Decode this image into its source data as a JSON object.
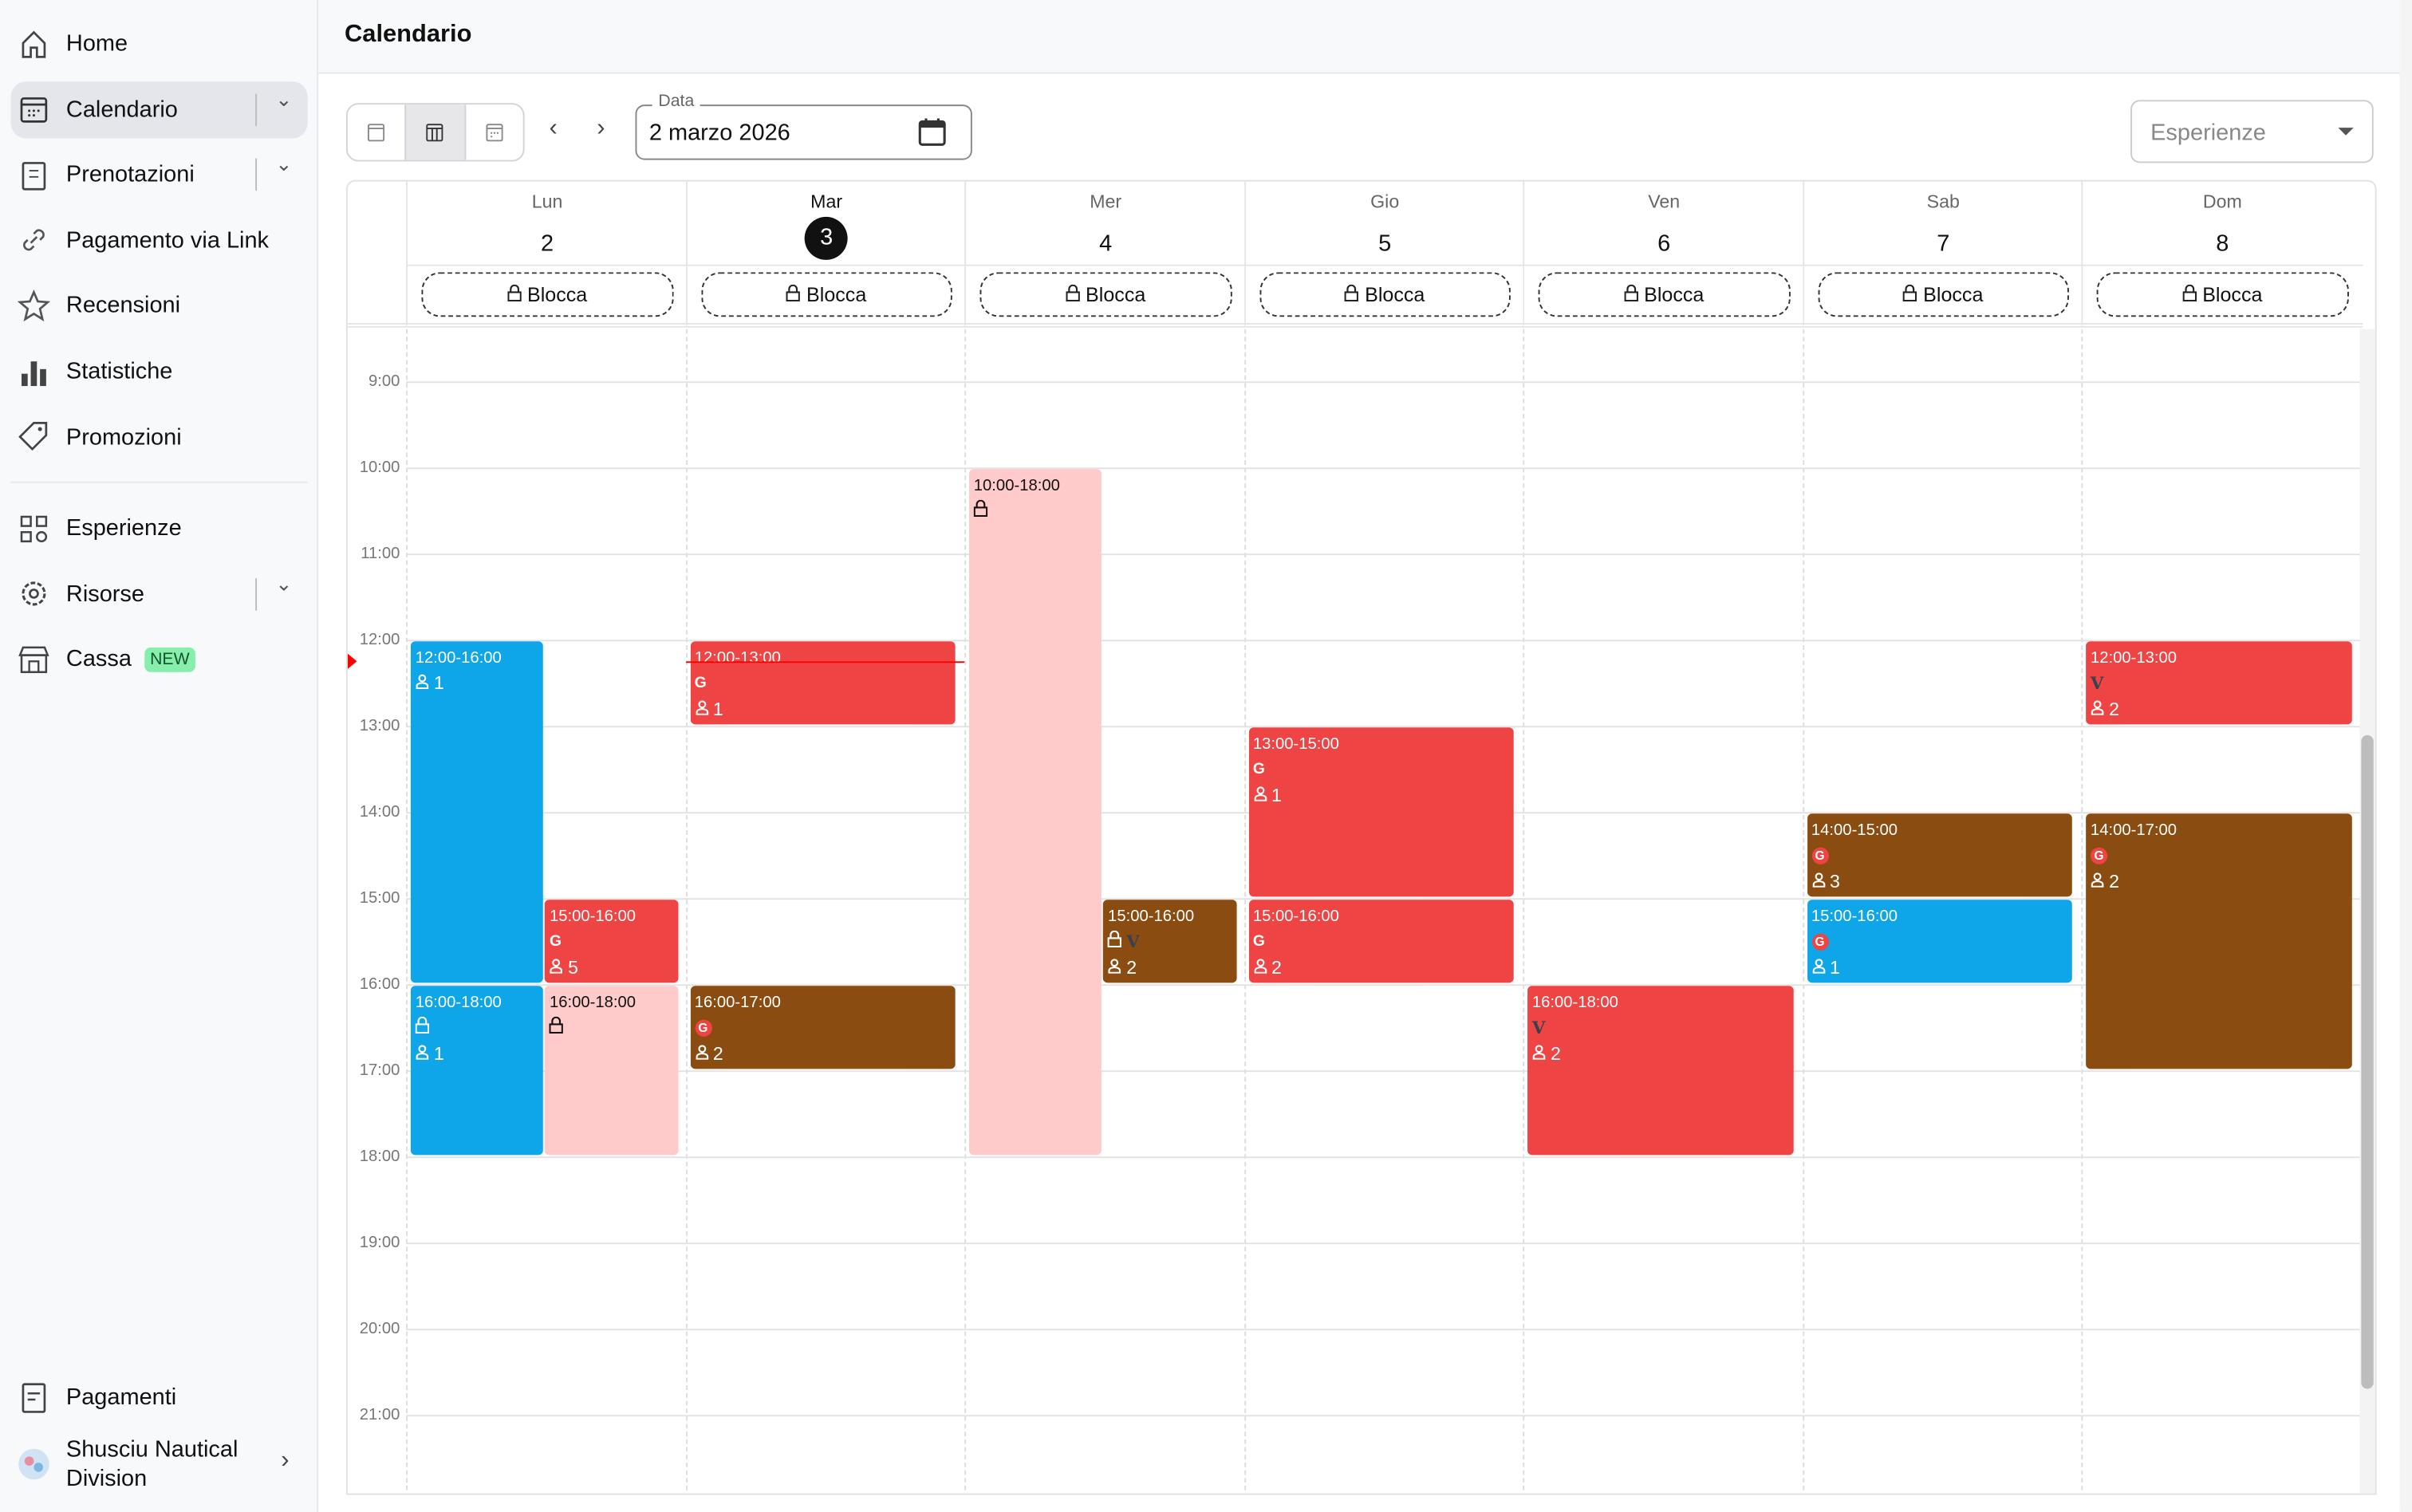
{
  "sidebar": {
    "items": [
      {
        "label": "Home",
        "icon": "home-icon"
      },
      {
        "label": "Calendario",
        "icon": "calendar-icon",
        "selected": true,
        "expandable": true
      },
      {
        "label": "Prenotazioni",
        "icon": "list-icon",
        "expandable": true
      },
      {
        "label": "Pagamento via Link",
        "icon": "link-icon"
      },
      {
        "label": "Recensioni",
        "icon": "star-icon"
      },
      {
        "label": "Statistiche",
        "icon": "bar-chart-icon"
      },
      {
        "label": "Promozioni",
        "icon": "tag-icon"
      }
    ],
    "items2": [
      {
        "label": "Esperienze",
        "icon": "grid-icon"
      },
      {
        "label": "Risorse",
        "icon": "gear-icon",
        "expandable": true
      },
      {
        "label": "Cassa",
        "icon": "store-icon",
        "badge": "NEW"
      }
    ],
    "bottom": {
      "payments": "Pagamenti",
      "account": "Shusciu Nautical Division"
    }
  },
  "header": {
    "title": "Calendario"
  },
  "toolbar": {
    "date_label": "Data",
    "date_value": "2 marzo 2026",
    "filter_placeholder": "Esperienze",
    "view": "week"
  },
  "calendar": {
    "block_label": "Blocca",
    "days": [
      {
        "name": "Lun",
        "num": "2"
      },
      {
        "name": "Mar",
        "num": "3",
        "today": true
      },
      {
        "name": "Mer",
        "num": "4"
      },
      {
        "name": "Gio",
        "num": "5"
      },
      {
        "name": "Ven",
        "num": "6"
      },
      {
        "name": "Sab",
        "num": "7"
      },
      {
        "name": "Dom",
        "num": "8"
      }
    ],
    "hours": [
      "9:00",
      "10:00",
      "11:00",
      "12:00",
      "13:00",
      "14:00",
      "15:00",
      "16:00",
      "17:00",
      "18:00",
      "19:00",
      "20:00",
      "21:00"
    ],
    "now": "12:15",
    "colors": {
      "blue": "#0ea5e9",
      "red": "#ef4444",
      "brown": "#8b4c11",
      "pink": "#fecaca"
    },
    "events": [
      {
        "day": 0,
        "start": 12,
        "end": 16,
        "time": "12:00-16:00",
        "color": "blue",
        "slot": "left",
        "people": "1"
      },
      {
        "day": 0,
        "start": 15,
        "end": 16,
        "time": "15:00-16:00",
        "color": "red",
        "slot": "right",
        "icons": [
          "g-plain"
        ],
        "people": "5"
      },
      {
        "day": 0,
        "start": 16,
        "end": 18,
        "time": "16:00-18:00",
        "color": "blue",
        "slot": "left",
        "icons": [
          "lock"
        ],
        "people": "1"
      },
      {
        "day": 0,
        "start": 16,
        "end": 18,
        "time": "16:00-18:00",
        "color": "pink",
        "slot": "right",
        "icons": [
          "lock"
        ]
      },
      {
        "day": 1,
        "start": 12,
        "end": 13,
        "time": "12:00-13:00",
        "color": "red",
        "slot": "full",
        "icons": [
          "g-plain"
        ],
        "people": "1"
      },
      {
        "day": 1,
        "start": 16,
        "end": 17,
        "time": "16:00-17:00",
        "color": "brown",
        "slot": "full",
        "icons": [
          "g-badge"
        ],
        "people": "2"
      },
      {
        "day": 2,
        "start": 10,
        "end": 18,
        "time": "10:00-18:00",
        "color": "pink",
        "slot": "left",
        "icons": [
          "lock"
        ]
      },
      {
        "day": 2,
        "start": 15,
        "end": 16,
        "time": "15:00-16:00",
        "color": "brown",
        "slot": "right",
        "icons": [
          "lock",
          "v-logo"
        ],
        "people": "2"
      },
      {
        "day": 3,
        "start": 13,
        "end": 15,
        "time": "13:00-15:00",
        "color": "red",
        "slot": "full",
        "icons": [
          "g-plain"
        ],
        "people": "1"
      },
      {
        "day": 3,
        "start": 15,
        "end": 16,
        "time": "15:00-16:00",
        "color": "red",
        "slot": "full",
        "icons": [
          "g-plain"
        ],
        "people": "2"
      },
      {
        "day": 4,
        "start": 16,
        "end": 18,
        "time": "16:00-18:00",
        "color": "red",
        "slot": "full",
        "icons": [
          "v-logo"
        ],
        "people": "2"
      },
      {
        "day": 5,
        "start": 14,
        "end": 15,
        "time": "14:00-15:00",
        "color": "brown",
        "slot": "full",
        "icons": [
          "g-badge"
        ],
        "people": "3"
      },
      {
        "day": 5,
        "start": 15,
        "end": 16,
        "time": "15:00-16:00",
        "color": "blue",
        "slot": "full",
        "icons": [
          "g-badge"
        ],
        "people": "1"
      },
      {
        "day": 6,
        "start": 12,
        "end": 13,
        "time": "12:00-13:00",
        "color": "red",
        "slot": "full",
        "icons": [
          "v-logo"
        ],
        "people": "2"
      },
      {
        "day": 6,
        "start": 14,
        "end": 17,
        "time": "14:00-17:00",
        "color": "brown",
        "slot": "full",
        "icons": [
          "g-badge"
        ],
        "people": "2"
      }
    ]
  }
}
